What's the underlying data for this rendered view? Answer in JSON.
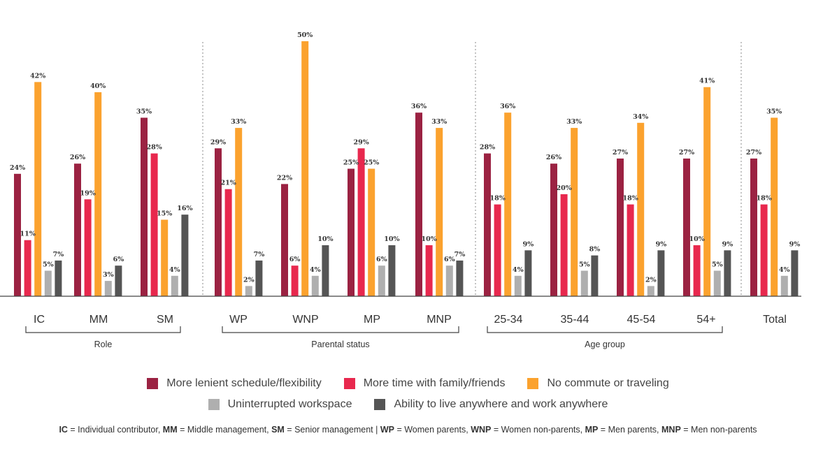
{
  "chart_data": {
    "type": "bar",
    "categories": [
      "IC",
      "MM",
      "SM",
      "WP",
      "WNP",
      "MP",
      "MNP",
      "25-34",
      "35-44",
      "45-54",
      "54+",
      "Total"
    ],
    "groups": [
      {
        "label": "Role",
        "members": [
          "IC",
          "MM",
          "SM"
        ]
      },
      {
        "label": "Parental status",
        "members": [
          "WP",
          "WNP",
          "MP",
          "MNP"
        ]
      },
      {
        "label": "Age group",
        "members": [
          "25-34",
          "35-44",
          "45-54",
          "54+"
        ]
      },
      {
        "label": "",
        "members": [
          "Total"
        ]
      }
    ],
    "series": [
      {
        "name": "More lenient schedule/flexibility",
        "color": "#9B2242",
        "values": [
          24,
          26,
          35,
          29,
          22,
          25,
          36,
          28,
          26,
          27,
          27,
          27
        ]
      },
      {
        "name": "More time with family/friends",
        "color": "#E8284E",
        "values": [
          11,
          19,
          28,
          21,
          6,
          29,
          10,
          18,
          20,
          18,
          10,
          18
        ]
      },
      {
        "name": "No commute or traveling",
        "color": "#FBA22E",
        "values": [
          42,
          40,
          15,
          33,
          50,
          25,
          33,
          36,
          33,
          34,
          41,
          35
        ]
      },
      {
        "name": "Uninterrupted workspace",
        "color": "#AFAFAF",
        "values": [
          5,
          3,
          4,
          2,
          4,
          6,
          6,
          4,
          5,
          2,
          5,
          4
        ]
      },
      {
        "name": "Ability to live anywhere and work anywhere",
        "color": "#555555",
        "values": [
          7,
          6,
          16,
          7,
          10,
          10,
          7,
          9,
          8,
          9,
          9,
          9
        ]
      }
    ],
    "value_suffix": "%",
    "ylim": [
      0,
      52
    ],
    "grid": false,
    "legend_position": "bottom"
  },
  "legend_rows": [
    [
      0,
      1,
      2
    ],
    [
      3,
      4
    ]
  ],
  "footnote": [
    {
      "abbr": "IC",
      "text": " = Individual contributor,  "
    },
    {
      "abbr": "MM",
      "text": " = Middle management, "
    },
    {
      "abbr": "SM",
      "text": " = Senior management | "
    },
    {
      "abbr": "WP",
      "text": " = Women parents, "
    },
    {
      "abbr": "WNP",
      "text": " = Women non-parents, "
    },
    {
      "abbr": "MP",
      "text": " = Men parents, "
    },
    {
      "abbr": "MNP",
      "text": " = Men non-parents"
    }
  ]
}
